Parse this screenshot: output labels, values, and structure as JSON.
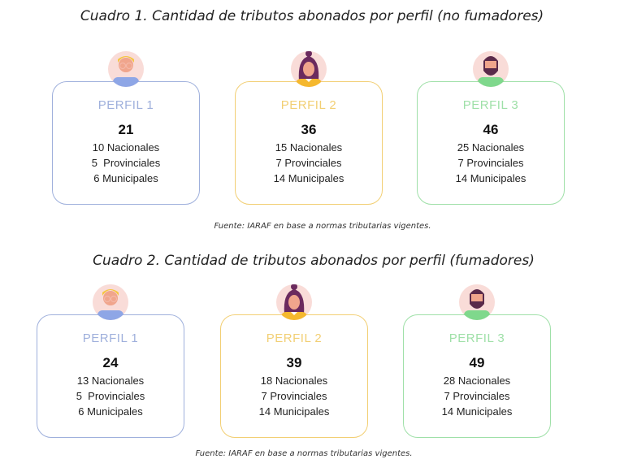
{
  "tables": [
    {
      "title": "Cuadro 1. Cantidad de tributos abonados por perfil (no fumadores)",
      "source": "Fuente: IARAF en base a normas tributarias vigentes.",
      "profiles": [
        {
          "name": "PERFIL 1",
          "total": "21",
          "lines": [
            "10 Nacionales",
            "5  Provinciales",
            "6 Municipales"
          ],
          "color": "#9fb0dc",
          "avatar": "man-glasses-icon"
        },
        {
          "name": "PERFIL 2",
          "total": "36",
          "lines": [
            "15 Nacionales",
            "7 Provinciales",
            "14 Municipales"
          ],
          "color": "#f2cf74",
          "avatar": "woman-icon"
        },
        {
          "name": "PERFIL 3",
          "total": "46",
          "lines": [
            "25 Nacionales",
            "7 Provinciales",
            "14 Municipales"
          ],
          "color": "#9fe0a8",
          "avatar": "bearded-man-icon"
        }
      ]
    },
    {
      "title": "Cuadro 2. Cantidad de tributos abonados por perfil (fumadores)",
      "source": "Fuente: IARAF en base a normas tributarias vigentes.",
      "profiles": [
        {
          "name": "PERFIL 1",
          "total": "24",
          "lines": [
            "13 Nacionales",
            "5  Provinciales",
            "6 Municipales"
          ],
          "color": "#9fb0dc",
          "avatar": "man-glasses-icon"
        },
        {
          "name": "PERFIL 2",
          "total": "39",
          "lines": [
            "18 Nacionales",
            "7 Provinciales",
            "14 Municipales"
          ],
          "color": "#f2cf74",
          "avatar": "woman-icon"
        },
        {
          "name": "PERFIL 3",
          "total": "49",
          "lines": [
            "28 Nacionales",
            "7 Provinciales",
            "14 Municipales"
          ],
          "color": "#9fe0a8",
          "avatar": "bearded-man-icon"
        }
      ]
    }
  ]
}
